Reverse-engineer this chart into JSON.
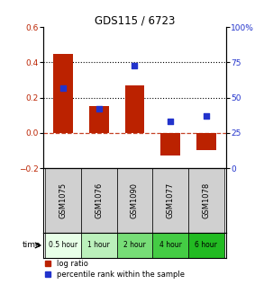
{
  "title": "GDS115 / 6723",
  "categories": [
    "GSM1075",
    "GSM1076",
    "GSM1090",
    "GSM1077",
    "GSM1078"
  ],
  "log_ratios": [
    0.45,
    0.155,
    0.27,
    -0.13,
    -0.095
  ],
  "percentile_ranks": [
    57,
    42,
    73,
    33,
    37
  ],
  "time_labels": [
    "0.5 hour",
    "1 hour",
    "2 hour",
    "4 hour",
    "6 hour"
  ],
  "time_colors": [
    "#e8ffe8",
    "#bbf0bb",
    "#77dd77",
    "#44cc44",
    "#22bb22"
  ],
  "gsm_bg_color": "#d0d0d0",
  "bar_color": "#bb2200",
  "dot_color": "#2233cc",
  "left_ylim": [
    -0.2,
    0.6
  ],
  "right_ylim": [
    0,
    100
  ],
  "left_yticks": [
    -0.2,
    0.0,
    0.2,
    0.4,
    0.6
  ],
  "right_yticks": [
    0,
    25,
    50,
    75,
    100
  ],
  "hlines_dotted": [
    0.4,
    0.2
  ],
  "hline_dashed": 0.0,
  "bar_width": 0.55,
  "legend_log": "log ratio",
  "legend_pct": "percentile rank within the sample",
  "time_label": "time"
}
